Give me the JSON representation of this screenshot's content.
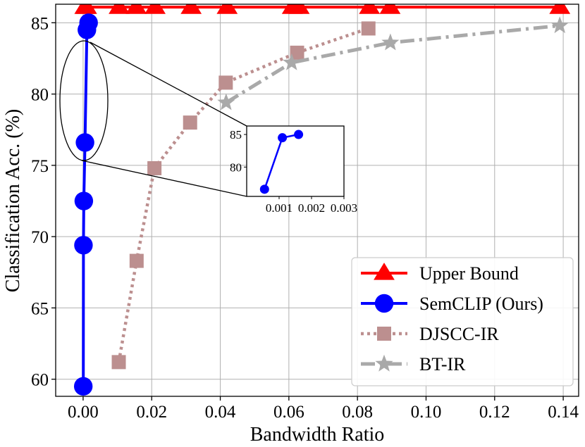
{
  "chart_data": {
    "type": "line",
    "xlabel": "Bandwidth Ratio",
    "ylabel": "Classification Acc. (%)",
    "xlim": [
      -0.008,
      0.1445
    ],
    "ylim": [
      58.8,
      86.3
    ],
    "xticks": [
      0.0,
      0.02,
      0.04,
      0.06,
      0.08,
      0.1,
      0.12,
      0.14
    ],
    "xtick_labels": [
      "0.00",
      "0.02",
      "0.04",
      "0.06",
      "0.08",
      "0.10",
      "0.12",
      "0.14"
    ],
    "yticks": [
      60,
      65,
      70,
      75,
      80,
      85
    ],
    "ytick_labels": [
      "60",
      "65",
      "70",
      "75",
      "80",
      "85"
    ],
    "grid": true,
    "legend_position": "lower-right",
    "series": [
      {
        "name": "Upper Bound",
        "color": "#ff0000",
        "linestyle": "solid",
        "marker": "triangle",
        "x": [
          0.0005,
          0.001,
          0.0105,
          0.0155,
          0.021,
          0.0315,
          0.042,
          0.061,
          0.063,
          0.0835,
          0.0895,
          0.139
        ],
        "y": [
          86.1,
          86.1,
          86.1,
          86.1,
          86.1,
          86.1,
          86.1,
          86.1,
          86.1,
          86.1,
          86.1,
          86.1
        ]
      },
      {
        "name": "SemCLIP (Ours)",
        "color": "#0000ff",
        "linestyle": "solid",
        "marker": "circle",
        "x": [
          5e-05,
          0.0001,
          0.0002,
          0.00055,
          0.0011,
          0.0016
        ],
        "y": [
          59.5,
          69.4,
          72.5,
          76.6,
          84.5,
          85.0
        ]
      },
      {
        "name": "DJSCC-IR",
        "color": "#bc8f8f",
        "linestyle": "dotted",
        "marker": "square",
        "x": [
          0.0104,
          0.0156,
          0.0208,
          0.0312,
          0.0416,
          0.0624,
          0.0832
        ],
        "y": [
          61.2,
          68.3,
          74.8,
          78.0,
          80.8,
          82.9,
          84.6
        ]
      },
      {
        "name": "BT-IR",
        "color": "#a9a9a9",
        "linestyle": "dashdot",
        "marker": "star",
        "x": [
          0.0417,
          0.0608,
          0.0896,
          0.139
        ],
        "y": [
          79.4,
          82.2,
          83.6,
          84.8
        ]
      }
    ],
    "inset": {
      "xlim": [
        0.0,
        0.003
      ],
      "ylim": [
        75.5,
        86.3
      ],
      "xticks": [
        0.001,
        0.002,
        0.003
      ],
      "xtick_labels": [
        "0.001",
        "0.002",
        "0.003"
      ],
      "yticks": [
        80,
        85
      ],
      "ytick_labels": [
        "80",
        "85"
      ],
      "series_name": "SemCLIP (Ours)",
      "x": [
        0.00055,
        0.0011,
        0.0016
      ],
      "y": [
        76.6,
        84.5,
        85.0
      ]
    }
  }
}
